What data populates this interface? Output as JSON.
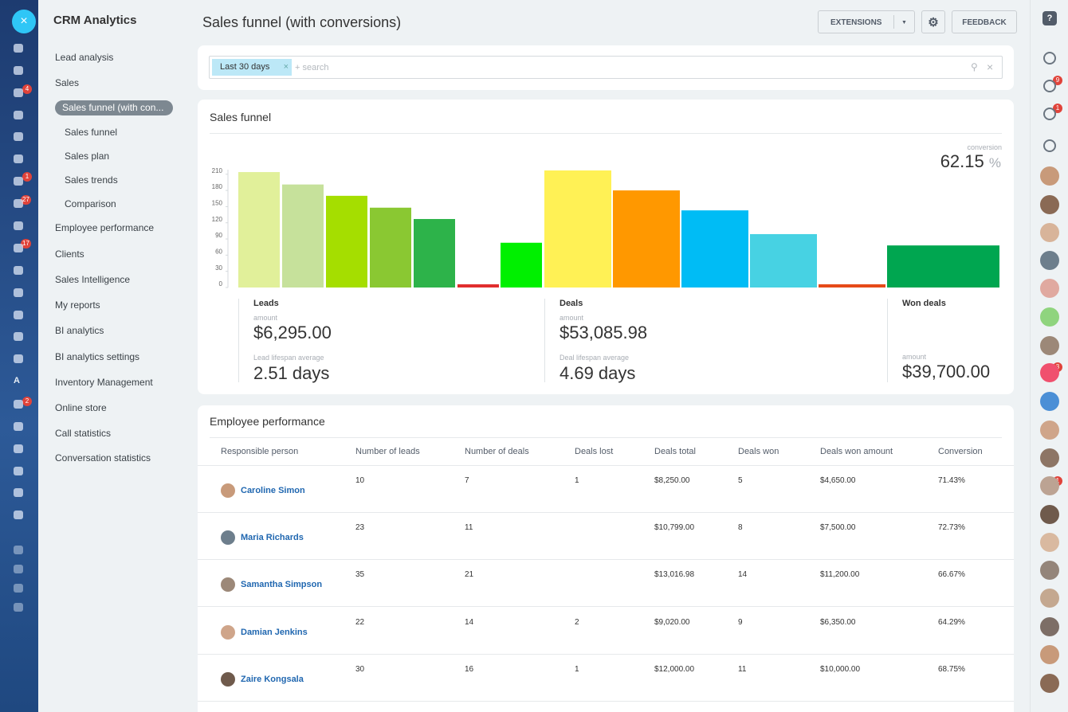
{
  "left_rail": {
    "badges": [
      "4",
      "1",
      "27",
      "17",
      "2"
    ],
    "letter": "A"
  },
  "sidebar": {
    "title": "CRM Analytics",
    "items": [
      "Lead analysis",
      "Sales",
      "Employee performance",
      "Clients",
      "Sales Intelligence",
      "My reports",
      "BI analytics",
      "BI analytics settings",
      "Inventory Management",
      "Online store",
      "Call statistics",
      "Conversation statistics"
    ],
    "active": "Sales funnel (with con...",
    "sales_subitems": [
      "Sales funnel",
      "Sales plan",
      "Sales trends",
      "Comparison"
    ]
  },
  "header": {
    "title": "Sales funnel (with conversions)",
    "buttons": [
      "EXTENSIONS",
      "FEEDBACK"
    ]
  },
  "filter": {
    "tag": "Last 30 days",
    "placeholder": "+ search"
  },
  "chart_data": {
    "type": "bar",
    "title": "Sales funnel",
    "values": [
      214,
      191,
      170,
      148,
      127,
      6,
      83,
      217,
      180,
      143,
      99,
      6,
      78
    ],
    "colors": [
      "#e1f09a",
      "#c6e19b",
      "#a5de00",
      "#8ac832",
      "#2db34a",
      "#e12e2e",
      "#00f000",
      "#fff155",
      "#ff9800",
      "#00bcf5",
      "#47d2e3",
      "#e64a19",
      "#00a650"
    ],
    "ylim": [
      0,
      220
    ],
    "yticks": [
      0,
      30,
      60,
      90,
      120,
      150,
      180,
      210
    ]
  },
  "conversion": {
    "label": "conversion",
    "value": "62.15",
    "unit": "%"
  },
  "stats": [
    {
      "title": "Leads",
      "amount_label": "amount",
      "amount": "$6,295.00",
      "lifespan_label": "Lead lifespan average",
      "lifespan": "2.51 days"
    },
    {
      "title": "Deals",
      "amount_label": "amount",
      "amount": "$53,085.98",
      "lifespan_label": "Deal lifespan average",
      "lifespan": "4.69 days"
    },
    {
      "title": "Won deals",
      "amount_label": "amount",
      "amount": "$39,700.00"
    }
  ],
  "table": {
    "title": "Employee performance",
    "columns": [
      "Responsible person",
      "Number of leads",
      "Number of deals",
      "Deals lost",
      "Deals total",
      "Deals won",
      "Deals won amount",
      "Conversion"
    ],
    "rows": [
      [
        "Caroline Simon",
        "10",
        "7",
        "1",
        "$8,250.00",
        "5",
        "$4,650.00",
        "71.43%"
      ],
      [
        "Maria Richards",
        "23",
        "11",
        null,
        "$10,799.00",
        "8",
        "$7,500.00",
        "72.73%"
      ],
      [
        "Samantha Simpson",
        "35",
        "21",
        null,
        "$13,016.98",
        "14",
        "$11,200.00",
        "66.67%"
      ],
      [
        "Damian Jenkins",
        "22",
        "14",
        "2",
        "$9,020.00",
        "9",
        "$6,350.00",
        "64.29%"
      ],
      [
        "Zaire Kongsala",
        "30",
        "16",
        "1",
        "$12,000.00",
        "11",
        "$10,000.00",
        "68.75%"
      ]
    ]
  },
  "right_rail": {
    "badges": [
      "9",
      "1",
      "3",
      "1"
    ]
  }
}
